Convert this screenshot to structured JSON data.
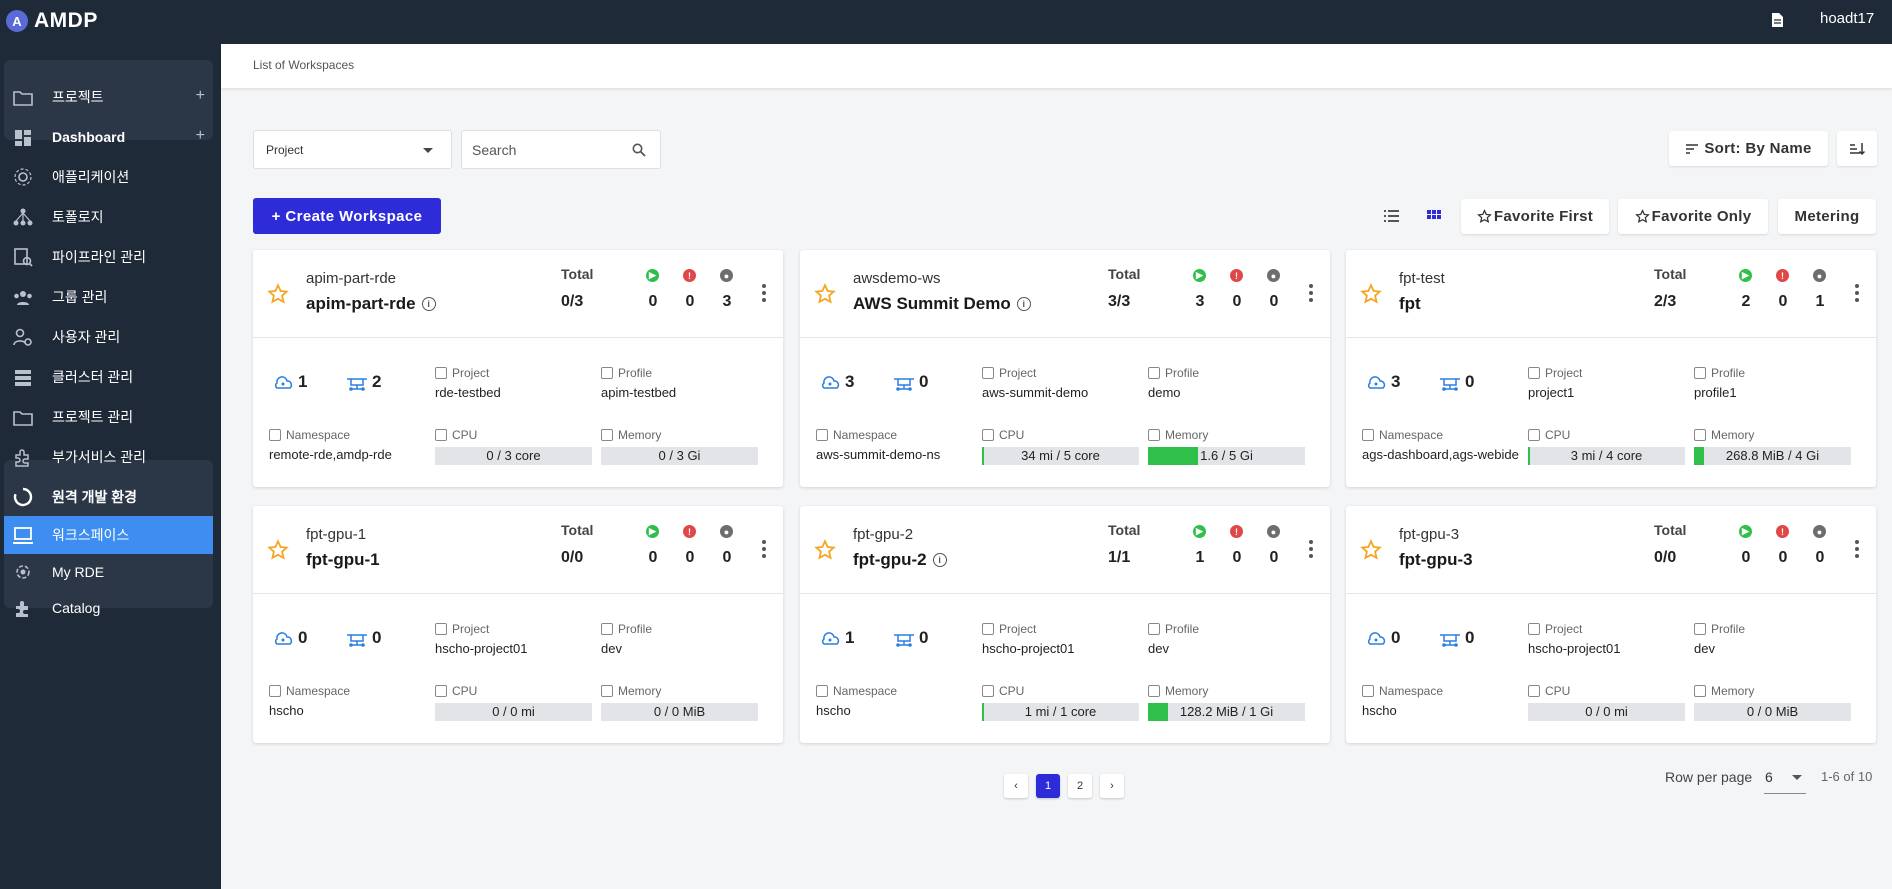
{
  "app": {
    "name": "AMDP",
    "logo_letter": "A",
    "username": "hoadt17"
  },
  "sidebar": {
    "items": [
      {
        "label": "프로젝트",
        "icon": "folder-icon",
        "plus": "+"
      },
      {
        "label": "Dashboard",
        "icon": "dashboard-icon",
        "plus": "+"
      },
      {
        "label": "애플리케이션",
        "icon": "application-icon"
      },
      {
        "label": "토폴로지",
        "icon": "topology-icon"
      },
      {
        "label": "파이프라인 관리",
        "icon": "pipeline-icon"
      },
      {
        "label": "그룹 관리",
        "icon": "group-icon"
      },
      {
        "label": "사용자 관리",
        "icon": "user-manage-icon"
      },
      {
        "label": "클러스터 관리",
        "icon": "cluster-icon"
      },
      {
        "label": "프로젝트 관리",
        "icon": "project-folder-icon"
      },
      {
        "label": "부가서비스 관리",
        "icon": "addon-service-icon"
      },
      {
        "label": "원격 개발 환경",
        "icon": "remote-dev-icon"
      },
      {
        "label": "워크스페이스",
        "icon": "workspace-icon",
        "active": true
      },
      {
        "label": "My RDE",
        "icon": "my-rde-icon"
      },
      {
        "label": "Catalog",
        "icon": "puzzle-icon"
      }
    ]
  },
  "breadcrumb": "List of Workspaces",
  "toolbar": {
    "project_select": "Project",
    "search_placeholder": "Search",
    "sort_label": "Sort: By Name",
    "create_label": "+ Create Workspace",
    "favorite_first": "Favorite First",
    "favorite_only": "Favorite Only",
    "metering": "Metering"
  },
  "card_labels": {
    "total": "Total",
    "project": "Project",
    "profile": "Profile",
    "namespace": "Namespace",
    "cpu": "CPU",
    "memory": "Memory",
    "node": "node",
    "fargate": "fargate"
  },
  "status_colors": {
    "running": "#2fbf4a",
    "error": "#e04848",
    "stopped": "#6d6d6d"
  },
  "workspaces": [
    {
      "name": "apim-part-rde",
      "display": "apim-part-rde",
      "info": true,
      "total": "0/3",
      "running": "0",
      "error": "0",
      "stopped": "3",
      "node": "1",
      "fargate": "2",
      "project": "rde-testbed",
      "profile": "apim-testbed",
      "namespace": "remote-rde,amdp-rde",
      "cpu": "0 / 3 core",
      "cpu_frac": 0,
      "memory": "0 / 3 Gi",
      "mem_frac": 0
    },
    {
      "name": "awsdemo-ws",
      "display": "AWS Summit Demo",
      "info": true,
      "total": "3/3",
      "running": "3",
      "error": "0",
      "stopped": "0",
      "node": "3",
      "fargate": "0",
      "project": "aws-summit-demo",
      "profile": "demo",
      "namespace": "aws-summit-demo-ns",
      "cpu": "34 mi / 5 core",
      "cpu_frac": 0.007,
      "memory": "1.6 / 5 Gi",
      "mem_frac": 0.32
    },
    {
      "name": "fpt-test",
      "display": "fpt",
      "info": false,
      "total": "2/3",
      "running": "2",
      "error": "0",
      "stopped": "1",
      "node": "3",
      "fargate": "0",
      "project": "project1",
      "profile": "profile1",
      "namespace": "ags-dashboard,ags-webide",
      "cpu": "3 mi / 4 core",
      "cpu_frac": 0.001,
      "memory": "268.8 MiB / 4 Gi",
      "mem_frac": 0.066
    },
    {
      "name": "fpt-gpu-1",
      "display": "fpt-gpu-1",
      "info": false,
      "total": "0/0",
      "running": "0",
      "error": "0",
      "stopped": "0",
      "node": "0",
      "fargate": "0",
      "project": "hscho-project01",
      "profile": "dev",
      "namespace": "hscho",
      "cpu": "0 / 0 mi",
      "cpu_frac": 0,
      "memory": "0 / 0 MiB",
      "mem_frac": 0
    },
    {
      "name": "fpt-gpu-2",
      "display": "fpt-gpu-2",
      "info": true,
      "total": "1/1",
      "running": "1",
      "error": "0",
      "stopped": "0",
      "node": "1",
      "fargate": "0",
      "project": "hscho-project01",
      "profile": "dev",
      "namespace": "hscho",
      "cpu": "1 mi / 1 core",
      "cpu_frac": 0.001,
      "memory": "128.2 MiB / 1 Gi",
      "mem_frac": 0.125
    },
    {
      "name": "fpt-gpu-3",
      "display": "fpt-gpu-3",
      "info": false,
      "total": "0/0",
      "running": "0",
      "error": "0",
      "stopped": "0",
      "node": "0",
      "fargate": "0",
      "project": "hscho-project01",
      "profile": "dev",
      "namespace": "hscho",
      "cpu": "0 / 0 mi",
      "cpu_frac": 0,
      "memory": "0 / 0 MiB",
      "mem_frac": 0
    }
  ],
  "pagination": {
    "prev": "‹",
    "pages": [
      "1",
      "2"
    ],
    "current": "1",
    "next": "›",
    "rows_label": "Row per page",
    "rows_value": "6",
    "range": "1-6 of 10"
  }
}
